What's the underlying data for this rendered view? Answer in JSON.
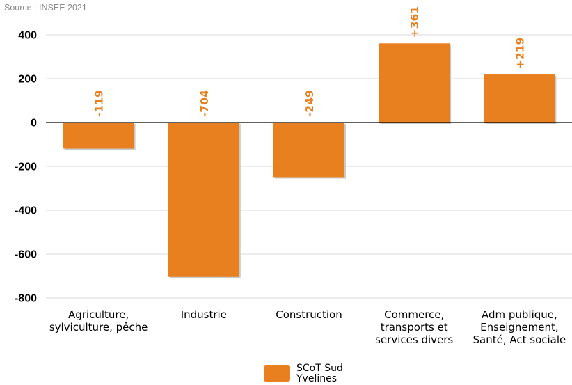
{
  "source_text": "Source : INSEE 2021",
  "colors": {
    "bar": "#E8801F",
    "bar_shadow": "#C9C9C9",
    "grid": "#D9D9D9",
    "zero_line": "#000000"
  },
  "chart_data": {
    "type": "bar",
    "categories": [
      [
        "Agriculture,",
        "sylviculture, pêche"
      ],
      [
        "Industrie"
      ],
      [
        "Construction"
      ],
      [
        "Commerce,",
        "transports et",
        "services divers"
      ],
      [
        "Adm publique,",
        "Enseignement,",
        "Santé, Act sociale"
      ]
    ],
    "series": [
      {
        "name": "SCoT Sud Yvelines",
        "values": [
          -119,
          -704,
          -249,
          361,
          219
        ]
      }
    ],
    "data_labels": [
      "-119",
      "-704",
      "-249",
      "+361",
      "+219"
    ],
    "yticks": [
      400,
      200,
      0,
      -200,
      -400,
      -600,
      -800
    ],
    "ytick_labels": [
      "400",
      "200",
      "0",
      "-200",
      "-400",
      "-600",
      "-800"
    ],
    "ylim": [
      -800,
      400
    ],
    "title": "",
    "xlabel": "",
    "ylabel": "",
    "grid": true,
    "legend": {
      "position": "bottom-center",
      "label_lines": [
        "SCoT Sud",
        "Yvelines"
      ]
    }
  }
}
